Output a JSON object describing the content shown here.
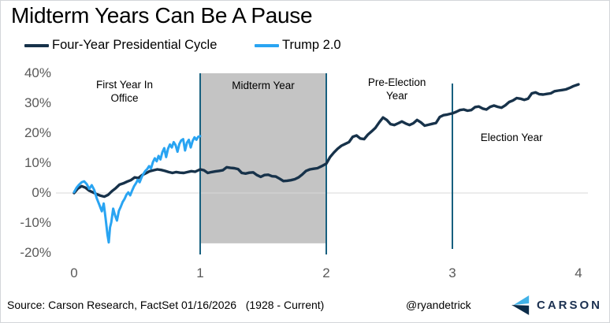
{
  "header": {
    "title": "Midterm Years Can Be A Pause"
  },
  "legend": [
    {
      "label": "Four-Year Presidential Cycle",
      "color": "#17324a"
    },
    {
      "label": "Trump 2.0",
      "color": "#29a4f2"
    }
  ],
  "footer": {
    "source": "Source: Carson Research, FactSet 01/16/2026   (1928 - Current)",
    "handle": "@ryandetrick",
    "brand": "CARSON",
    "brand_colors": {
      "light": "#41b2e8",
      "dark": "#0c2c49",
      "text": "#1b3050"
    }
  },
  "chart_data": {
    "type": "line",
    "title": "Midterm Years Can Be A Pause",
    "xlabel": "",
    "ylabel": "",
    "xlim": [
      0,
      4
    ],
    "ylim": [
      -20,
      40
    ],
    "grid": "zero-line-only",
    "legend_position": "top-left",
    "zero_line_color": "#d9d9d9",
    "vline_color": "#17607f",
    "x_ticks": [
      {
        "label": "0",
        "value": 0
      },
      {
        "label": "1",
        "value": 1
      },
      {
        "label": "2",
        "value": 2
      },
      {
        "label": "3",
        "value": 3
      },
      {
        "label": "4",
        "value": 4
      }
    ],
    "y_ticks": [
      {
        "label": "40%",
        "value": 40
      },
      {
        "label": "30%",
        "value": 30
      },
      {
        "label": "20%",
        "value": 20
      },
      {
        "label": "10%",
        "value": 10
      },
      {
        "label": "0%",
        "value": 0
      },
      {
        "label": "-10%",
        "value": -10
      },
      {
        "label": "-20%",
        "value": -20
      }
    ],
    "shaded_region": {
      "label": "Midterm Year",
      "x0": 1,
      "x1": 2,
      "y_top": 40,
      "y_bottom": -16.8,
      "color": "#c4c4c4"
    },
    "vertical_lines": [
      {
        "x": 1,
        "full": true
      },
      {
        "x": 2,
        "full": true
      },
      {
        "x": 3,
        "full": false
      }
    ],
    "annotations": [
      {
        "id": "first-year-in-office",
        "text": "First Year In\nOffice",
        "x": 0.4,
        "y": 38.5
      },
      {
        "id": "midterm-year",
        "text": "Midterm Year",
        "x": 1.5,
        "y": 38.2
      },
      {
        "id": "pre-election-year",
        "text": "Pre-Election\nYear",
        "x": 2.56,
        "y": 39.3
      },
      {
        "id": "election-year",
        "text": "Election Year",
        "x": 3.47,
        "y": 20.8
      }
    ],
    "series": [
      {
        "name": "Four-Year Presidential Cycle",
        "color": "#17324a",
        "stroke_width": 3.4,
        "points": [
          [
            0.0,
            0.0
          ],
          [
            0.03,
            1.5
          ],
          [
            0.06,
            2.3
          ],
          [
            0.09,
            1.8
          ],
          [
            0.12,
            0.8
          ],
          [
            0.15,
            0.2
          ],
          [
            0.18,
            -0.4
          ],
          [
            0.21,
            -0.9
          ],
          [
            0.24,
            -1.2
          ],
          [
            0.27,
            -0.6
          ],
          [
            0.3,
            0.6
          ],
          [
            0.33,
            1.6
          ],
          [
            0.36,
            2.8
          ],
          [
            0.39,
            3.2
          ],
          [
            0.42,
            3.8
          ],
          [
            0.45,
            4.3
          ],
          [
            0.48,
            5.2
          ],
          [
            0.51,
            5.0
          ],
          [
            0.54,
            6.0
          ],
          [
            0.57,
            6.6
          ],
          [
            0.6,
            7.3
          ],
          [
            0.63,
            7.6
          ],
          [
            0.66,
            7.9
          ],
          [
            0.69,
            7.7
          ],
          [
            0.72,
            7.4
          ],
          [
            0.75,
            7.0
          ],
          [
            0.78,
            6.7
          ],
          [
            0.81,
            7.0
          ],
          [
            0.84,
            6.8
          ],
          [
            0.87,
            6.7
          ],
          [
            0.9,
            7.0
          ],
          [
            0.93,
            7.3
          ],
          [
            0.96,
            7.1
          ],
          [
            1.0,
            7.9
          ],
          [
            1.03,
            7.6
          ],
          [
            1.06,
            6.7
          ],
          [
            1.09,
            7.0
          ],
          [
            1.12,
            7.2
          ],
          [
            1.15,
            7.4
          ],
          [
            1.18,
            7.6
          ],
          [
            1.21,
            8.6
          ],
          [
            1.24,
            8.4
          ],
          [
            1.27,
            8.3
          ],
          [
            1.3,
            8.0
          ],
          [
            1.33,
            6.7
          ],
          [
            1.36,
            6.5
          ],
          [
            1.39,
            6.8
          ],
          [
            1.42,
            6.9
          ],
          [
            1.45,
            6.0
          ],
          [
            1.48,
            5.4
          ],
          [
            1.51,
            6.0
          ],
          [
            1.54,
            6.1
          ],
          [
            1.57,
            5.6
          ],
          [
            1.6,
            5.5
          ],
          [
            1.63,
            4.8
          ],
          [
            1.66,
            4.0
          ],
          [
            1.69,
            4.1
          ],
          [
            1.72,
            4.3
          ],
          [
            1.75,
            4.6
          ],
          [
            1.78,
            5.2
          ],
          [
            1.81,
            6.2
          ],
          [
            1.84,
            7.4
          ],
          [
            1.87,
            7.9
          ],
          [
            1.9,
            8.1
          ],
          [
            1.93,
            8.3
          ],
          [
            1.96,
            8.9
          ],
          [
            2.0,
            9.8
          ],
          [
            2.03,
            12.0
          ],
          [
            2.06,
            13.5
          ],
          [
            2.09,
            14.8
          ],
          [
            2.12,
            15.8
          ],
          [
            2.15,
            16.4
          ],
          [
            2.18,
            17.0
          ],
          [
            2.21,
            18.8
          ],
          [
            2.24,
            19.2
          ],
          [
            2.27,
            18.2
          ],
          [
            2.3,
            18.0
          ],
          [
            2.33,
            19.5
          ],
          [
            2.36,
            20.6
          ],
          [
            2.39,
            21.8
          ],
          [
            2.42,
            23.6
          ],
          [
            2.45,
            25.2
          ],
          [
            2.48,
            24.4
          ],
          [
            2.51,
            23.0
          ],
          [
            2.54,
            22.7
          ],
          [
            2.57,
            23.3
          ],
          [
            2.6,
            23.9
          ],
          [
            2.63,
            23.2
          ],
          [
            2.66,
            22.7
          ],
          [
            2.69,
            23.3
          ],
          [
            2.72,
            24.4
          ],
          [
            2.75,
            23.6
          ],
          [
            2.78,
            22.5
          ],
          [
            2.81,
            22.8
          ],
          [
            2.84,
            23.1
          ],
          [
            2.87,
            23.4
          ],
          [
            2.9,
            25.4
          ],
          [
            2.93,
            26.0
          ],
          [
            2.96,
            26.2
          ],
          [
            3.0,
            26.6
          ],
          [
            3.03,
            27.1
          ],
          [
            3.06,
            27.7
          ],
          [
            3.09,
            27.9
          ],
          [
            3.12,
            27.5
          ],
          [
            3.15,
            27.7
          ],
          [
            3.18,
            28.7
          ],
          [
            3.21,
            28.9
          ],
          [
            3.24,
            28.2
          ],
          [
            3.27,
            27.9
          ],
          [
            3.3,
            28.8
          ],
          [
            3.33,
            29.2
          ],
          [
            3.36,
            28.8
          ],
          [
            3.39,
            28.5
          ],
          [
            3.42,
            29.3
          ],
          [
            3.45,
            30.4
          ],
          [
            3.48,
            30.9
          ],
          [
            3.51,
            31.7
          ],
          [
            3.54,
            31.5
          ],
          [
            3.57,
            31.1
          ],
          [
            3.6,
            31.5
          ],
          [
            3.63,
            33.3
          ],
          [
            3.66,
            33.6
          ],
          [
            3.69,
            33.0
          ],
          [
            3.72,
            32.9
          ],
          [
            3.75,
            33.1
          ],
          [
            3.78,
            33.3
          ],
          [
            3.81,
            34.0
          ],
          [
            3.84,
            34.2
          ],
          [
            3.87,
            34.4
          ],
          [
            3.9,
            34.6
          ],
          [
            3.93,
            35.1
          ],
          [
            3.96,
            35.7
          ],
          [
            4.0,
            36.3
          ]
        ]
      },
      {
        "name": "Trump 2.0",
        "color": "#29a4f2",
        "stroke_width": 3.0,
        "points": [
          [
            0.0,
            0.3
          ],
          [
            0.02,
            1.8
          ],
          [
            0.04,
            2.8
          ],
          [
            0.06,
            3.6
          ],
          [
            0.08,
            3.9
          ],
          [
            0.1,
            3.0
          ],
          [
            0.12,
            1.4
          ],
          [
            0.14,
            2.6
          ],
          [
            0.16,
            1.0
          ],
          [
            0.18,
            -1.8
          ],
          [
            0.2,
            -3.9
          ],
          [
            0.22,
            -6.1
          ],
          [
            0.235,
            -3.5
          ],
          [
            0.25,
            -8.5
          ],
          [
            0.265,
            -14.0
          ],
          [
            0.275,
            -16.5
          ],
          [
            0.285,
            -11.5
          ],
          [
            0.295,
            -9.8
          ],
          [
            0.31,
            -5.2
          ],
          [
            0.325,
            -7.5
          ],
          [
            0.34,
            -9.2
          ],
          [
            0.355,
            -6.0
          ],
          [
            0.37,
            -4.6
          ],
          [
            0.385,
            -3.0
          ],
          [
            0.4,
            -2.0
          ],
          [
            0.415,
            -0.6
          ],
          [
            0.43,
            0.2
          ],
          [
            0.445,
            -0.8
          ],
          [
            0.46,
            0.8
          ],
          [
            0.475,
            2.2
          ],
          [
            0.49,
            3.2
          ],
          [
            0.505,
            4.4
          ],
          [
            0.52,
            3.6
          ],
          [
            0.535,
            5.2
          ],
          [
            0.55,
            6.4
          ],
          [
            0.565,
            7.4
          ],
          [
            0.58,
            8.0
          ],
          [
            0.595,
            9.0
          ],
          [
            0.61,
            8.2
          ],
          [
            0.625,
            10.3
          ],
          [
            0.64,
            11.6
          ],
          [
            0.655,
            10.6
          ],
          [
            0.67,
            12.4
          ],
          [
            0.685,
            11.2
          ],
          [
            0.7,
            13.6
          ],
          [
            0.715,
            15.0
          ],
          [
            0.73,
            12.0
          ],
          [
            0.745,
            14.8
          ],
          [
            0.76,
            16.2
          ],
          [
            0.775,
            15.2
          ],
          [
            0.79,
            17.0
          ],
          [
            0.805,
            16.0
          ],
          [
            0.82,
            13.8
          ],
          [
            0.835,
            16.4
          ],
          [
            0.85,
            17.6
          ],
          [
            0.865,
            18.0
          ],
          [
            0.88,
            14.2
          ],
          [
            0.895,
            16.8
          ],
          [
            0.91,
            17.8
          ],
          [
            0.925,
            15.2
          ],
          [
            0.94,
            17.4
          ],
          [
            0.955,
            18.6
          ],
          [
            0.97,
            17.8
          ],
          [
            0.985,
            18.8
          ],
          [
            1.0,
            19.0
          ]
        ]
      }
    ]
  }
}
